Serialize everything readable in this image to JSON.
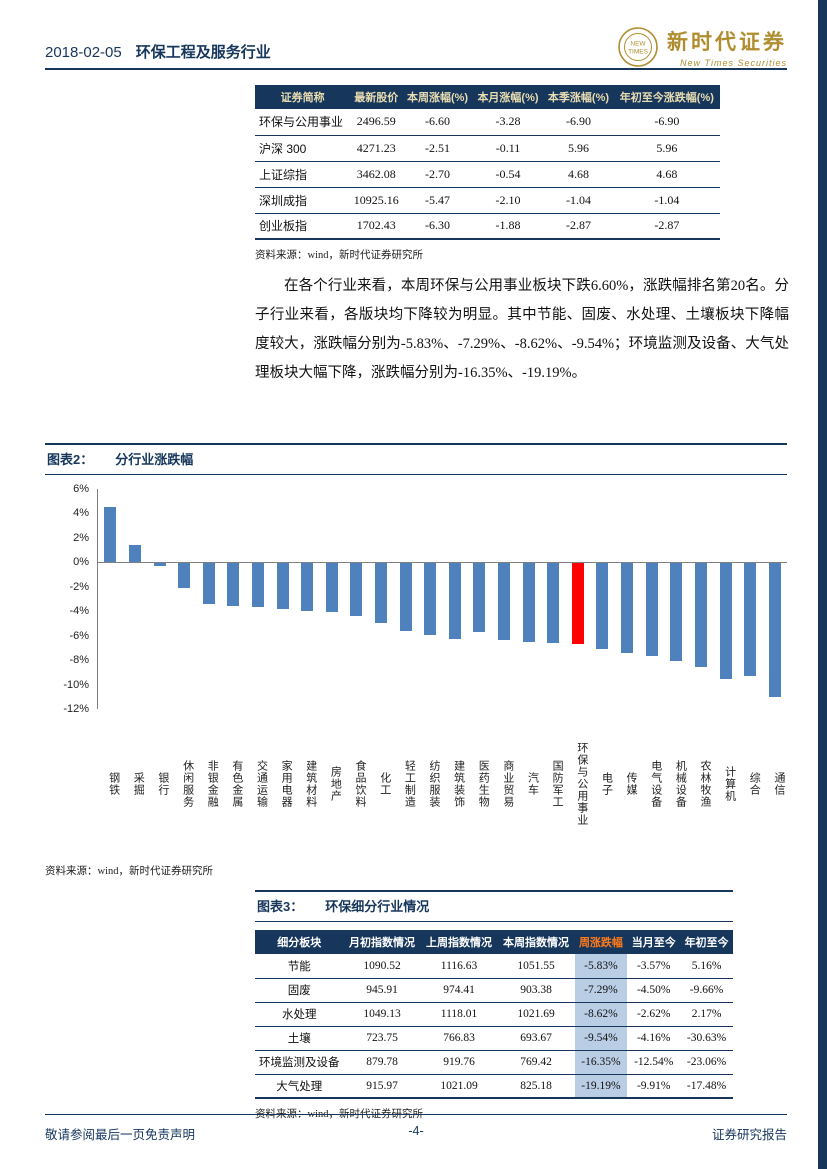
{
  "header": {
    "date": "2018-02-05",
    "industry": "环保工程及服务行业",
    "logo_cn": "新时代证券",
    "logo_en": "New Times Securities",
    "emblem_line1": "NEW",
    "emblem_line2": "TIMES"
  },
  "table1": {
    "headers": [
      "证券简称",
      "最新股价",
      "本周涨幅(%)",
      "本月涨幅(%)",
      "本季涨幅(%)",
      "年初至今涨跌幅(%)"
    ],
    "rows": [
      [
        "环保与公用事业",
        "2496.59",
        "-6.60",
        "-3.28",
        "-6.90",
        "-6.90"
      ],
      [
        "沪深 300",
        "4271.23",
        "-2.51",
        "-0.11",
        "5.96",
        "5.96"
      ],
      [
        "上证综指",
        "3462.08",
        "-2.70",
        "-0.54",
        "4.68",
        "4.68"
      ],
      [
        "深圳成指",
        "10925.16",
        "-5.47",
        "-2.10",
        "-1.04",
        "-1.04"
      ],
      [
        "创业板指",
        "1702.43",
        "-6.30",
        "-1.88",
        "-2.87",
        "-2.87"
      ]
    ],
    "source": "资料来源：wind，新时代证券研究所"
  },
  "paragraph": "在各个行业来看，本周环保与公用事业板块下跌6.60%，涨跌幅排名第20名。分子行业来看，各版块均下降较为明显。其中节能、固废、水处理、土壤板块下降幅度较大，涨跌幅分别为-5.83%、-7.29%、-8.62%、-9.54%；环境监测及设备、大气处理板块大幅下降，涨跌幅分别为-16.35%、-19.19%。",
  "figure2": {
    "label": "图表2：",
    "title": "分行业涨跌幅",
    "source": "资料来源：wind，新时代证券研究所"
  },
  "chart_data": {
    "type": "bar",
    "title": "分行业涨跌幅",
    "categories": [
      "钢铁",
      "采掘",
      "银行",
      "休闲服务",
      "非银金融",
      "有色金属",
      "交通运输",
      "家用电器",
      "建筑材料",
      "房地产",
      "食品饮料",
      "化工",
      "轻工制造",
      "纺织服装",
      "建筑装饰",
      "医药生物",
      "商业贸易",
      "汽车",
      "国防军工",
      "环保与公用事业",
      "电子",
      "传媒",
      "电气设备",
      "机械设备",
      "农林牧渔",
      "计算机",
      "综合",
      "通信"
    ],
    "values": [
      4.5,
      1.4,
      -0.2,
      -2.0,
      -3.3,
      -3.5,
      -3.6,
      -3.7,
      -3.9,
      -4.0,
      -4.3,
      -4.9,
      -5.5,
      -5.9,
      -6.2,
      -5.6,
      -6.3,
      -6.4,
      -6.5,
      -6.6,
      -7.0,
      -7.3,
      -7.6,
      -8.0,
      -8.5,
      -9.5,
      -9.2,
      -10.9
    ],
    "unit": "%",
    "ylim": [
      -12,
      6
    ],
    "yticks": [
      "6%",
      "4%",
      "2%",
      "0%",
      "-2%",
      "-4%",
      "-6%",
      "-8%",
      "-10%",
      "-12%"
    ],
    "bar_color": "#4f81bd",
    "highlight_category": "环保与公用事业",
    "highlight_color": "#ff0000",
    "grid": false,
    "legend": false
  },
  "table3": {
    "label": "图表3：",
    "title": "环保细分行业情况",
    "headers": [
      "细分板块",
      "月初指数情况",
      "上周指数情况",
      "本周指数情况",
      "周涨跌幅",
      "当月至今",
      "年初至今"
    ],
    "highlight_col": 4,
    "rows": [
      [
        "节能",
        "1090.52",
        "1116.63",
        "1051.55",
        "-5.83%",
        "-3.57%",
        "5.16%"
      ],
      [
        "固废",
        "945.91",
        "974.41",
        "903.38",
        "-7.29%",
        "-4.50%",
        "-9.66%"
      ],
      [
        "水处理",
        "1049.13",
        "1118.01",
        "1021.69",
        "-8.62%",
        "-2.62%",
        "2.17%"
      ],
      [
        "土壤",
        "723.75",
        "766.83",
        "693.67",
        "-9.54%",
        "-4.16%",
        "-30.63%"
      ],
      [
        "环境监测及设备",
        "879.78",
        "919.76",
        "769.42",
        "-16.35%",
        "-12.54%",
        "-23.06%"
      ],
      [
        "大气处理",
        "915.97",
        "1021.09",
        "825.18",
        "-19.19%",
        "-9.91%",
        "-17.48%"
      ]
    ],
    "source": "资料来源：wind，新时代证券研究所"
  },
  "footer": {
    "left": "敬请参阅最后一页免责声明",
    "center": "-4-",
    "right": "证券研究报告"
  }
}
